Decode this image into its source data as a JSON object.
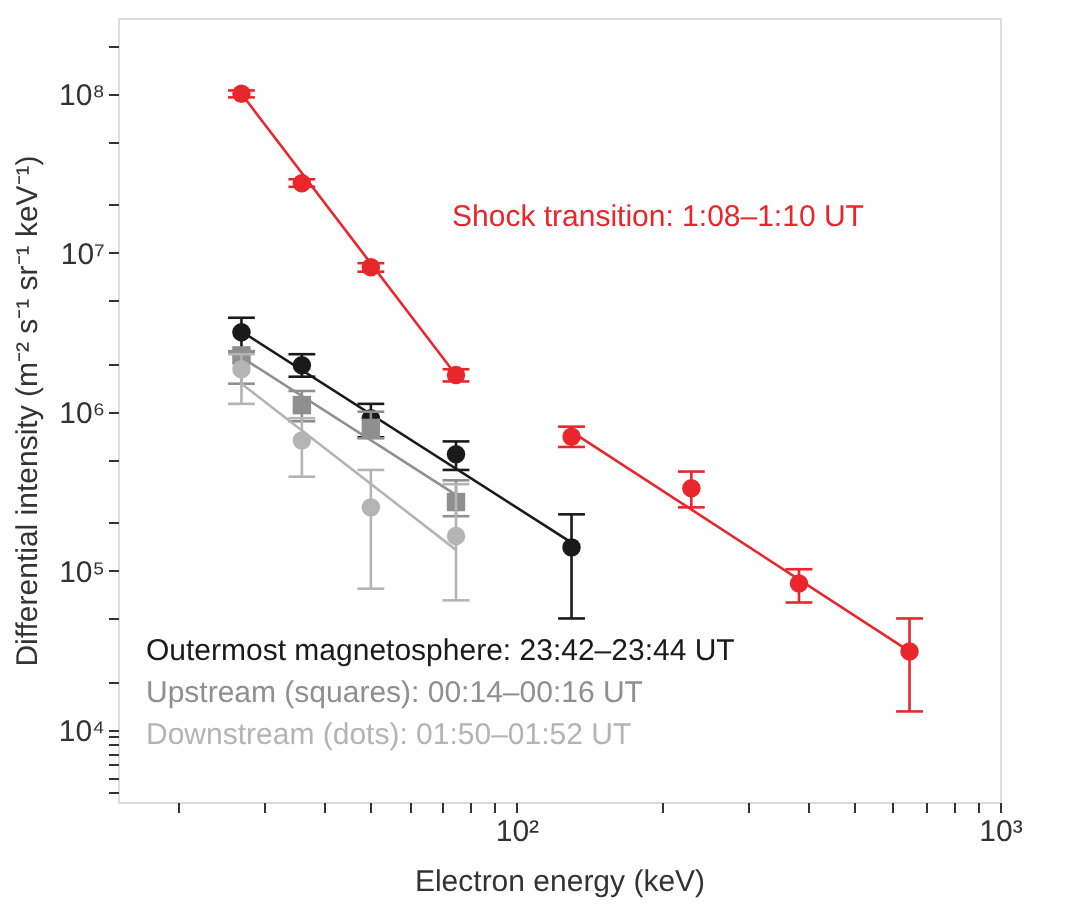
{
  "chart_data": {
    "type": "scatter",
    "xlabel": "Electron energy (keV)",
    "ylabel": "Differential intensity (m⁻² s⁻¹ sr⁻¹ keV⁻¹)",
    "log": "xy",
    "grid": false,
    "legend": "bottom left",
    "xlim": [
      15,
      1000
    ],
    "ylim": [
      3500,
      300000000
    ],
    "xticks": [
      {
        "value": 20,
        "label": null
      },
      {
        "value": 30,
        "label": null
      },
      {
        "value": 40,
        "label": null
      },
      {
        "value": 50,
        "label": null
      },
      {
        "value": 60,
        "label": null
      },
      {
        "value": 70,
        "label": null
      },
      {
        "value": 80,
        "label": null
      },
      {
        "value": 90,
        "label": null
      },
      {
        "value": 100,
        "label": "10²"
      },
      {
        "value": 200,
        "label": null
      },
      {
        "value": 300,
        "label": null
      },
      {
        "value": 400,
        "label": null
      },
      {
        "value": 500,
        "label": null
      },
      {
        "value": 600,
        "label": null
      },
      {
        "value": 700,
        "label": null
      },
      {
        "value": 800,
        "label": null
      },
      {
        "value": 900,
        "label": null
      },
      {
        "value": 1000,
        "label": "10³"
      }
    ],
    "yticks": [
      {
        "value": 4000,
        "label": null
      },
      {
        "value": 5000,
        "label": null
      },
      {
        "value": 6000,
        "label": null
      },
      {
        "value": 7000,
        "label": null
      },
      {
        "value": 8000,
        "label": null
      },
      {
        "value": 9000,
        "label": null
      },
      {
        "value": 10000,
        "label": "10⁴"
      },
      {
        "value": 100000,
        "label": "10⁵"
      },
      {
        "value": 1000000,
        "label": "10⁶"
      },
      {
        "value": 10000000,
        "label": "10⁷"
      },
      {
        "value": 100000000,
        "label": "10⁸"
      },
      {
        "value": 200000000,
        "label": null
      },
      {
        "value": 20000,
        "label": null
      },
      {
        "value": 50000,
        "label": null
      },
      {
        "value": 200000,
        "label": null
      },
      {
        "value": 500000,
        "label": null
      },
      {
        "value": 2000000,
        "label": null
      },
      {
        "value": 5000000,
        "label": null
      },
      {
        "value": 20000000,
        "label": null
      },
      {
        "value": 50000000,
        "label": null
      }
    ],
    "series": [
      {
        "name": "Shock transition: 1:08–1:10 UT",
        "color": "#e8262b",
        "marker": "circle",
        "x": [
          27,
          36,
          50,
          75,
          130,
          230,
          384,
          650
        ],
        "values": [
          100000000,
          27400000,
          8100000,
          1700000,
          695000,
          330000,
          83000,
          31000
        ],
        "errors": [
          [
            95000000,
            105000000
          ],
          [
            26000000,
            29000000
          ],
          [
            7600000,
            8600000
          ],
          [
            1550000,
            1850000
          ],
          [
            600000,
            805000
          ],
          [
            250000,
            420000
          ],
          [
            63000,
            102000
          ],
          [
            13000,
            50000
          ]
        ]
      },
      {
        "color": "#e8262b",
        "type": "line",
        "x": [
          27,
          75
        ],
        "values": [
          100000000,
          1700000
        ]
      },
      {
        "color": "#e8262b",
        "type": "line",
        "x": [
          130,
          650
        ],
        "values": [
          750000,
          31000
        ]
      },
      {
        "name": "Outermost magnetosphere: 23:42–23:44 UT",
        "color": "#1a1a1a",
        "marker": "circle",
        "x": [
          27,
          36,
          50,
          75,
          130
        ],
        "values": [
          3160000,
          1960000,
          910000,
          540000,
          140000
        ],
        "errors": [
          [
            2400000,
            3900000
          ],
          [
            1660000,
            2300000
          ],
          [
            690000,
            1120000
          ],
          [
            430000,
            650000
          ],
          [
            50000,
            226000
          ]
        ]
      },
      {
        "color": "#1a1a1a",
        "type": "line",
        "x": [
          27,
          130
        ],
        "values": [
          3200000,
          150000
        ]
      },
      {
        "name": "Upstream (squares): 00:14–00:16 UT",
        "color": "#8f8f8f",
        "marker": "square",
        "x": [
          27,
          36,
          50,
          75
        ],
        "values": [
          2260000,
          1100000,
          790000,
          270000
        ],
        "errors": [
          [
            1500000,
            2400000
          ],
          [
            870000,
            1350000
          ],
          [
            680000,
            1000000
          ],
          [
            220000,
            370000
          ]
        ]
      },
      {
        "color": "#8f8f8f",
        "type": "line",
        "x": [
          27,
          75
        ],
        "values": [
          2200000,
          300000
        ]
      },
      {
        "name": "Downstream (dots): 01:50–01:52 UT",
        "color": "#b4b4b4",
        "marker": "circle",
        "x": [
          27,
          36,
          50,
          75
        ],
        "values": [
          1850000,
          660000,
          250000,
          165000
        ],
        "errors": [
          [
            1120000,
            2300000
          ],
          [
            390000,
            910000
          ],
          [
            77000,
            430000
          ],
          [
            65000,
            350000
          ]
        ]
      },
      {
        "color": "#b4b4b4",
        "type": "line",
        "x": [
          27,
          75
        ],
        "values": [
          1500000,
          135000
        ]
      }
    ]
  }
}
